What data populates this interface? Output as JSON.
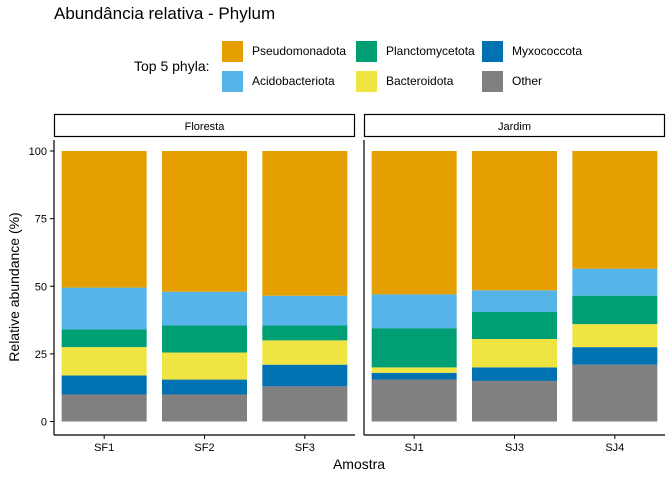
{
  "chart_data": {
    "type": "bar",
    "title": "Abundância relativa - Phylum",
    "xlabel": "Amostra",
    "ylabel": "Relative abundance (%)",
    "ylim": [
      0,
      100
    ],
    "yticks": [
      0,
      25,
      50,
      75,
      100
    ],
    "legend_title": "Top 5 phyla:",
    "legend_position": "top",
    "grid": false,
    "stacked": true,
    "facets": [
      {
        "name": "Floresta",
        "categories": [
          "SF1",
          "SF2",
          "SF3"
        ]
      },
      {
        "name": "Jardim",
        "categories": [
          "SJ1",
          "SJ3",
          "SJ4"
        ]
      }
    ],
    "categories": [
      "SF1",
      "SF2",
      "SF3",
      "SJ1",
      "SJ3",
      "SJ4"
    ],
    "series": [
      {
        "name": "Other",
        "color": "#808080",
        "values": [
          10.0,
          10.0,
          13.0,
          15.5,
          15.0,
          21.0
        ]
      },
      {
        "name": "Myxococcota",
        "color": "#0072B2",
        "values": [
          7.0,
          5.5,
          8.0,
          2.5,
          5.0,
          6.5
        ]
      },
      {
        "name": "Bacteroidota",
        "color": "#F0E442",
        "values": [
          10.5,
          10.0,
          9.0,
          2.0,
          10.5,
          8.5
        ]
      },
      {
        "name": "Planctomycetota",
        "color": "#009E73",
        "values": [
          6.5,
          10.0,
          5.5,
          14.5,
          10.0,
          10.5
        ]
      },
      {
        "name": "Acidobacteriota",
        "color": "#56B4E9",
        "values": [
          15.5,
          12.5,
          11.0,
          12.5,
          8.0,
          10.0
        ]
      },
      {
        "name": "Pseudomonadota",
        "color": "#E69F00",
        "values": [
          50.5,
          52.0,
          53.5,
          53.0,
          51.5,
          43.5
        ]
      }
    ]
  },
  "legend_order": [
    "Pseudomonadota",
    "Planctomycetota",
    "Myxococcota",
    "Acidobacteriota",
    "Bacteroidota",
    "Other"
  ]
}
